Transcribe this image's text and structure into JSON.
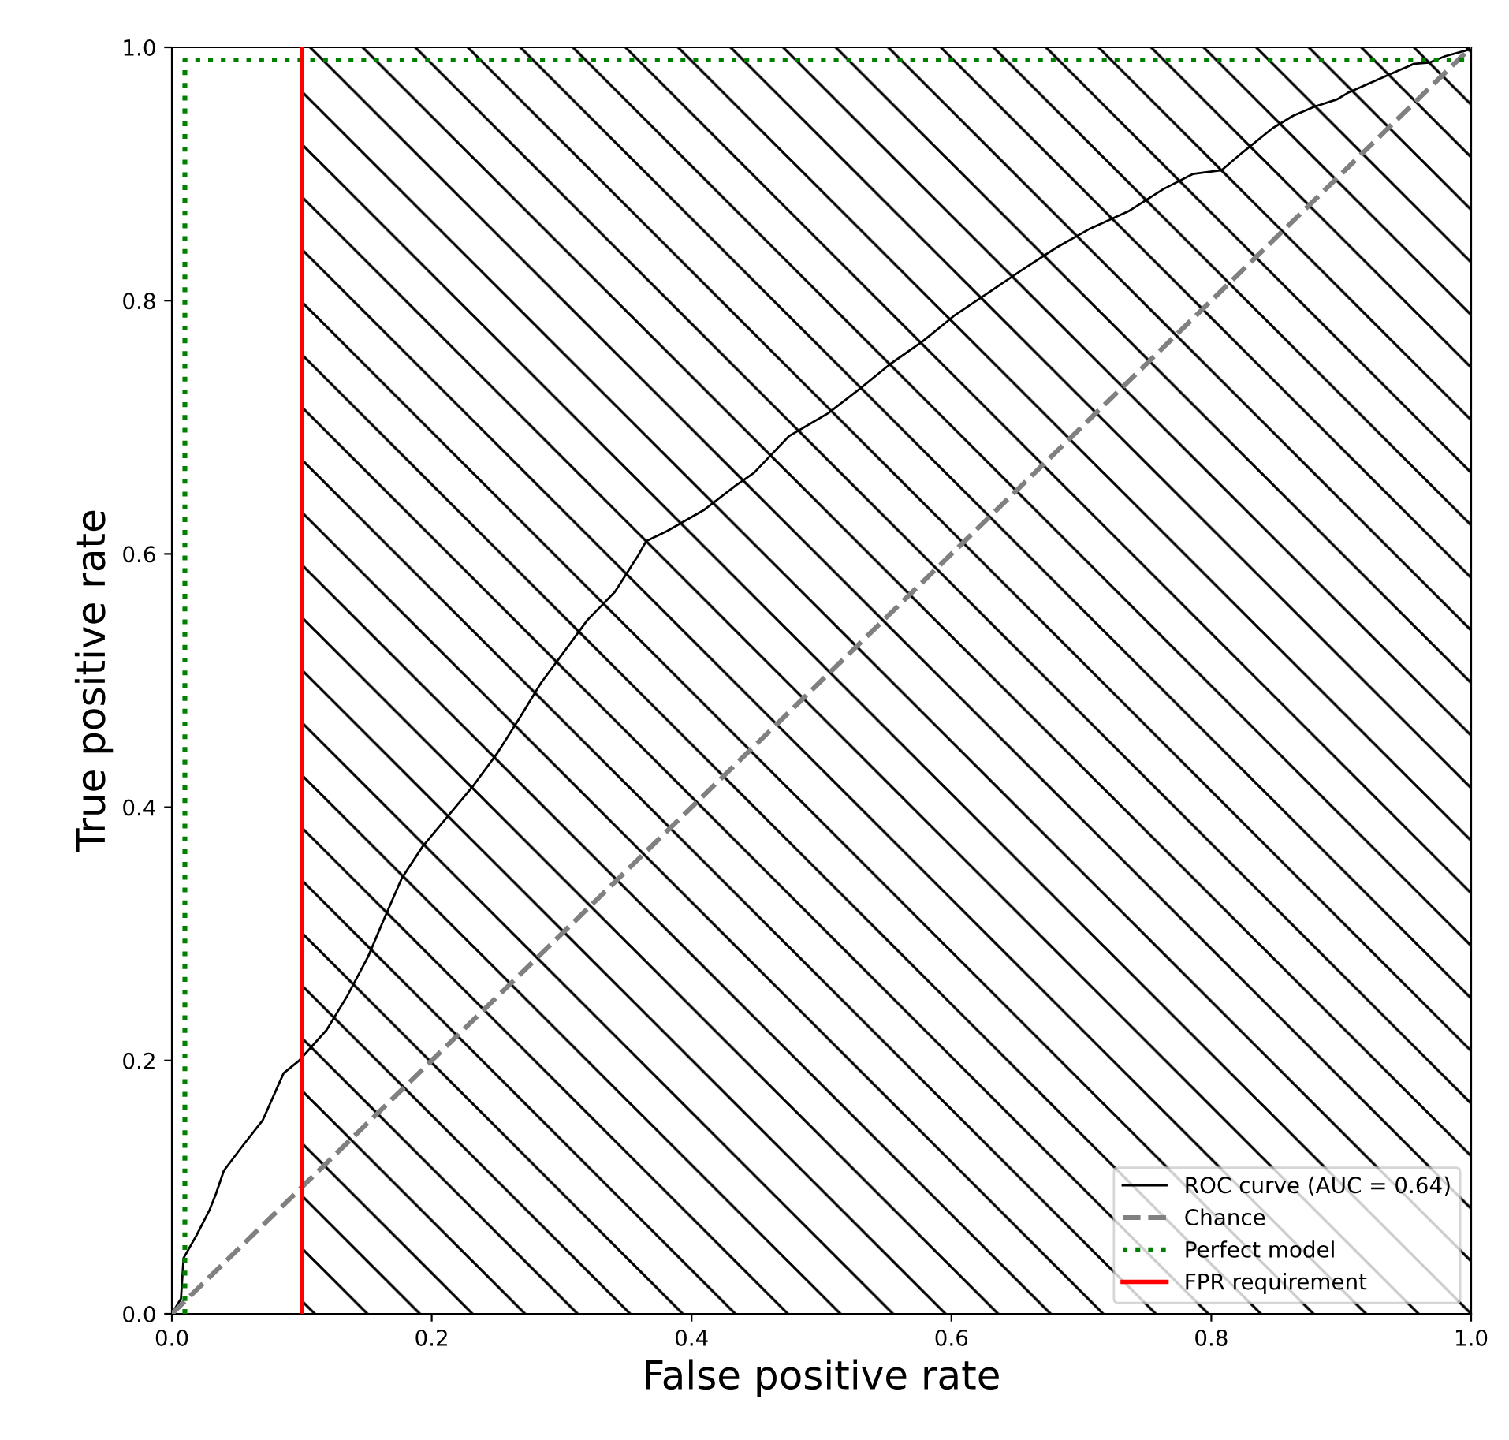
{
  "chart_data": {
    "type": "line",
    "xlabel": "False positive rate",
    "ylabel": "True positive rate",
    "xlim": [
      0,
      1
    ],
    "ylim": [
      0,
      1
    ],
    "xticks": [
      {
        "value": 0,
        "label": "0.0"
      },
      {
        "value": 0.2,
        "label": "0.2"
      },
      {
        "value": 0.4,
        "label": "0.4"
      },
      {
        "value": 0.6,
        "label": "0.6"
      },
      {
        "value": 0.8,
        "label": "0.8"
      },
      {
        "value": 1,
        "label": "1.0"
      }
    ],
    "yticks": [
      {
        "value": 0,
        "label": "0.0"
      },
      {
        "value": 0.2,
        "label": "0.2"
      },
      {
        "value": 0.4,
        "label": "0.4"
      },
      {
        "value": 0.6,
        "label": "0.6"
      },
      {
        "value": 0.8,
        "label": "0.8"
      },
      {
        "value": 1,
        "label": "1.0"
      }
    ],
    "grid": false,
    "legend": "bottom right",
    "marker": "none",
    "series": [
      {
        "name": "ROC curve (AUC = 0.64)",
        "color": "#000000",
        "line_style": "solid",
        "x": [
          0,
          0.007,
          0.009,
          0.019,
          0.029,
          0.034,
          0.04,
          0.054,
          0.07,
          0.086,
          0.098,
          0.119,
          0.135,
          0.151,
          0.163,
          0.177,
          0.193,
          0.232,
          0.25,
          0.268,
          0.284,
          0.302,
          0.32,
          0.341,
          0.359,
          0.365,
          0.381,
          0.41,
          0.434,
          0.448,
          0.475,
          0.505,
          0.529,
          0.553,
          0.578,
          0.602,
          0.628,
          0.654,
          0.681,
          0.707,
          0.737,
          0.763,
          0.786,
          0.808,
          0.824,
          0.847,
          0.863,
          0.879,
          0.897,
          0.905,
          0.936,
          0.956,
          0.968,
          0.98,
          0.998,
          1
        ],
        "values": [
          0,
          0.012,
          0.044,
          0.062,
          0.082,
          0.095,
          0.113,
          0.132,
          0.153,
          0.19,
          0.2,
          0.224,
          0.251,
          0.282,
          0.311,
          0.344,
          0.369,
          0.417,
          0.442,
          0.471,
          0.498,
          0.523,
          0.548,
          0.57,
          0.599,
          0.61,
          0.618,
          0.635,
          0.654,
          0.664,
          0.693,
          0.711,
          0.73,
          0.75,
          0.768,
          0.788,
          0.806,
          0.824,
          0.842,
          0.857,
          0.871,
          0.888,
          0.9,
          0.903,
          0.917,
          0.936,
          0.946,
          0.953,
          0.959,
          0.964,
          0.978,
          0.987,
          0.988,
          0.993,
          0.998,
          1
        ]
      },
      {
        "name": "Chance",
        "color": "#808080",
        "line_style": "dashed",
        "x": [
          0,
          1
        ],
        "values": [
          0,
          1
        ]
      },
      {
        "name": "Perfect model",
        "color": "#008000",
        "line_style": "dotted",
        "x": [
          0.01,
          0.01,
          1
        ],
        "values": [
          0,
          0.99,
          0.99
        ]
      },
      {
        "name": "FPR requirement",
        "color": "#ff0000",
        "line_style": "solid",
        "x": [
          0.1,
          0.1
        ],
        "values": [
          0,
          1
        ]
      }
    ],
    "bands": [
      {
        "axis": "x",
        "from": 0.1,
        "to": 1,
        "color": "#000000"
      }
    ]
  }
}
